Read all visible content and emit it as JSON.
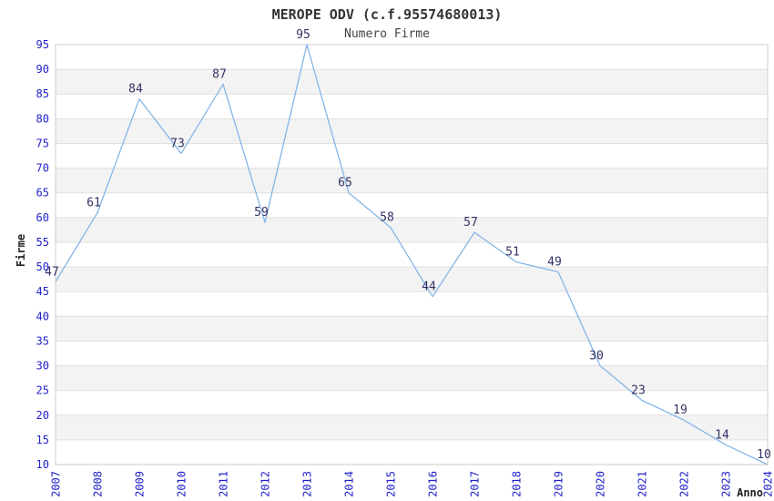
{
  "chart_data": {
    "type": "line",
    "title": "MEROPE ODV (c.f.95574680013)",
    "subtitle": "Numero Firme",
    "xlabel": "Anno",
    "ylabel": "Firme",
    "categories": [
      "2007",
      "2008",
      "2009",
      "2010",
      "2011",
      "2012",
      "2013",
      "2014",
      "2015",
      "2016",
      "2017",
      "2018",
      "2019",
      "2020",
      "2021",
      "2022",
      "2023",
      "2024"
    ],
    "values": [
      47,
      61,
      84,
      73,
      87,
      59,
      95,
      65,
      58,
      44,
      57,
      51,
      49,
      30,
      23,
      19,
      14,
      10
    ],
    "ylim": [
      10,
      95
    ],
    "ytick_step": 5,
    "grid": true,
    "legend_position": "none",
    "x_tick_rotation": -90,
    "data_labels_shown": true,
    "colors": {
      "line": "#85b5e8",
      "tick_label": "#2222cc",
      "data_label": "#333366",
      "band": "#f3f3f3",
      "gridline": "#e0e0e0",
      "plot_border": "#cccccc",
      "background": "#ffffff"
    }
  }
}
